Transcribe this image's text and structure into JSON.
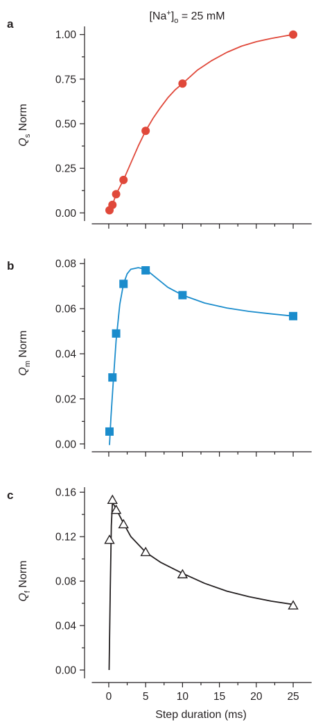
{
  "header": {
    "base": "[Na",
    "sup": "+",
    "close": "]",
    "sub": "o",
    "tail": " = 25 mM"
  },
  "colors": {
    "panel_a": "#e0483a",
    "panel_b": "#1a8ccc",
    "panel_c": "#231f20",
    "axes": "#231f20"
  },
  "shared_xaxis": {
    "label": "Step duration (ms)",
    "xlim": [
      -3,
      28
    ],
    "ticks": [
      0,
      5,
      10,
      15,
      20,
      25
    ],
    "tick_labels": [
      "0",
      "5",
      "10",
      "15",
      "20",
      "25"
    ]
  },
  "chart_data": [
    {
      "panel": "a",
      "type": "scatter",
      "ylabel_main": "Q",
      "ylabel_sub": "s",
      "ylabel_rest": " Norm",
      "ylim": [
        -0.03,
        1.03
      ],
      "yticks": [
        0.0,
        0.25,
        0.5,
        0.75,
        1.0
      ],
      "ytick_labels": [
        "0.00",
        "0.25",
        "0.50",
        "0.75",
        "1.00"
      ],
      "marker": "circle",
      "points": [
        {
          "x": 0.1,
          "y": 0.015
        },
        {
          "x": 0.5,
          "y": 0.045
        },
        {
          "x": 1,
          "y": 0.105
        },
        {
          "x": 2,
          "y": 0.185
        },
        {
          "x": 5,
          "y": 0.46
        },
        {
          "x": 10,
          "y": 0.725
        },
        {
          "x": 25,
          "y": 1.0
        }
      ],
      "fit": [
        {
          "x": 0.1,
          "y": 0.015
        },
        {
          "x": 0.5,
          "y": 0.045
        },
        {
          "x": 1,
          "y": 0.105
        },
        {
          "x": 2,
          "y": 0.185
        },
        {
          "x": 3,
          "y": 0.28
        },
        {
          "x": 4,
          "y": 0.375
        },
        {
          "x": 5,
          "y": 0.46
        },
        {
          "x": 6,
          "y": 0.53
        },
        {
          "x": 7,
          "y": 0.59
        },
        {
          "x": 8,
          "y": 0.645
        },
        {
          "x": 9,
          "y": 0.69
        },
        {
          "x": 10,
          "y": 0.725
        },
        {
          "x": 12,
          "y": 0.8
        },
        {
          "x": 14,
          "y": 0.855
        },
        {
          "x": 16,
          "y": 0.9
        },
        {
          "x": 18,
          "y": 0.935
        },
        {
          "x": 20,
          "y": 0.96
        },
        {
          "x": 22,
          "y": 0.978
        },
        {
          "x": 24,
          "y": 0.993
        },
        {
          "x": 25,
          "y": 1.0
        }
      ]
    },
    {
      "panel": "b",
      "type": "scatter",
      "ylabel_main": "Q",
      "ylabel_sub": "m",
      "ylabel_rest": " Norm",
      "ylim": [
        -0.001,
        0.081
      ],
      "yticks": [
        0.0,
        0.02,
        0.04,
        0.06,
        0.08
      ],
      "ytick_labels": [
        "0.00",
        "0.02",
        "0.04",
        "0.06",
        "0.08"
      ],
      "marker": "square",
      "points": [
        {
          "x": 0.1,
          "y": 0.0055
        },
        {
          "x": 0.5,
          "y": 0.0295
        },
        {
          "x": 1,
          "y": 0.049
        },
        {
          "x": 2,
          "y": 0.071
        },
        {
          "x": 5,
          "y": 0.077
        },
        {
          "x": 10,
          "y": 0.066
        },
        {
          "x": 25,
          "y": 0.0567
        }
      ],
      "fit": [
        {
          "x": 0.1,
          "y": -0.0005
        },
        {
          "x": 0.3,
          "y": 0.012
        },
        {
          "x": 0.6,
          "y": 0.027
        },
        {
          "x": 1,
          "y": 0.046
        },
        {
          "x": 1.5,
          "y": 0.062
        },
        {
          "x": 2,
          "y": 0.071
        },
        {
          "x": 2.5,
          "y": 0.0755
        },
        {
          "x": 3,
          "y": 0.0775
        },
        {
          "x": 4,
          "y": 0.0782
        },
        {
          "x": 5,
          "y": 0.0775
        },
        {
          "x": 6,
          "y": 0.0748
        },
        {
          "x": 8,
          "y": 0.0695
        },
        {
          "x": 10,
          "y": 0.066
        },
        {
          "x": 13,
          "y": 0.0625
        },
        {
          "x": 16,
          "y": 0.0603
        },
        {
          "x": 19,
          "y": 0.0588
        },
        {
          "x": 22,
          "y": 0.0577
        },
        {
          "x": 25,
          "y": 0.0567
        }
      ]
    },
    {
      "panel": "c",
      "type": "scatter",
      "ylabel_main": "Q",
      "ylabel_sub": "f",
      "ylabel_rest": " Norm",
      "ylim": [
        -0.005,
        0.162
      ],
      "yticks": [
        0.0,
        0.04,
        0.08,
        0.12,
        0.16
      ],
      "ytick_labels": [
        "0.00",
        "0.04",
        "0.08",
        "0.12",
        "0.16"
      ],
      "marker": "triangle-open",
      "points": [
        {
          "x": 0.1,
          "y": 0.117
        },
        {
          "x": 0.5,
          "y": 0.153
        },
        {
          "x": 1,
          "y": 0.144
        },
        {
          "x": 2,
          "y": 0.131
        },
        {
          "x": 5,
          "y": 0.106
        },
        {
          "x": 10,
          "y": 0.086
        },
        {
          "x": 25,
          "y": 0.058
        }
      ],
      "fit": [
        {
          "x": 0.05,
          "y": 0.0
        },
        {
          "x": 0.2,
          "y": 0.07
        },
        {
          "x": 0.35,
          "y": 0.13
        },
        {
          "x": 0.5,
          "y": 0.151
        },
        {
          "x": 1,
          "y": 0.145
        },
        {
          "x": 2,
          "y": 0.132
        },
        {
          "x": 3,
          "y": 0.12
        },
        {
          "x": 5,
          "y": 0.106
        },
        {
          "x": 7,
          "y": 0.097
        },
        {
          "x": 10,
          "y": 0.087
        },
        {
          "x": 13,
          "y": 0.078
        },
        {
          "x": 16,
          "y": 0.071
        },
        {
          "x": 19,
          "y": 0.066
        },
        {
          "x": 22,
          "y": 0.062
        },
        {
          "x": 25,
          "y": 0.059
        }
      ]
    }
  ]
}
